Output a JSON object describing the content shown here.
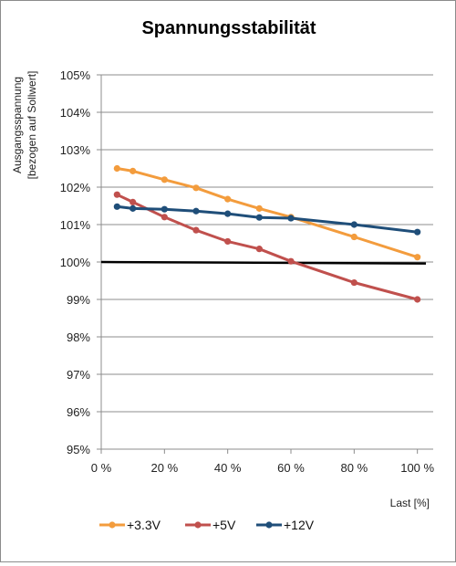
{
  "chart_data": {
    "type": "line",
    "title": "Spannungsstabilität",
    "ylabel_lines": [
      "Ausgangsspannung",
      "[bezogen auf Sollwert]"
    ],
    "xlabel": "Last [%]",
    "xlim": [
      0,
      105
    ],
    "ylim": [
      95,
      105
    ],
    "x_ticks": [
      0,
      20,
      40,
      60,
      80,
      100
    ],
    "x_tick_labels": [
      "0 %",
      "20 %",
      "40 %",
      "60 %",
      "80 %",
      "100 %"
    ],
    "y_ticks": [
      95,
      96,
      97,
      98,
      99,
      100,
      101,
      102,
      103,
      104,
      105
    ],
    "y_tick_labels": [
      "95%",
      "96%",
      "97%",
      "98%",
      "99%",
      "100%",
      "101%",
      "102%",
      "103%",
      "104%",
      "105%"
    ],
    "grid": true,
    "legend_position": "bottom",
    "reference_line": {
      "y_start": 100.0,
      "y_end": 99.96,
      "color": "#000000"
    },
    "series": [
      {
        "name": "+3.3V",
        "color": "#f39c3d",
        "x": [
          5,
          10,
          20,
          30,
          40,
          50,
          60,
          80,
          100
        ],
        "y": [
          102.5,
          102.43,
          102.2,
          101.98,
          101.68,
          101.43,
          101.2,
          100.67,
          100.13
        ]
      },
      {
        "name": "+5V",
        "color": "#c0504d",
        "x": [
          5,
          10,
          20,
          30,
          40,
          50,
          60,
          80,
          100
        ],
        "y": [
          101.8,
          101.6,
          101.2,
          100.85,
          100.55,
          100.35,
          100.02,
          99.45,
          99.0
        ]
      },
      {
        "name": "+12V",
        "color": "#1f4e79",
        "x": [
          5,
          10,
          20,
          30,
          40,
          50,
          60,
          80,
          100
        ],
        "y": [
          101.48,
          101.43,
          101.41,
          101.36,
          101.29,
          101.19,
          101.17,
          101.0,
          100.8
        ]
      }
    ]
  }
}
